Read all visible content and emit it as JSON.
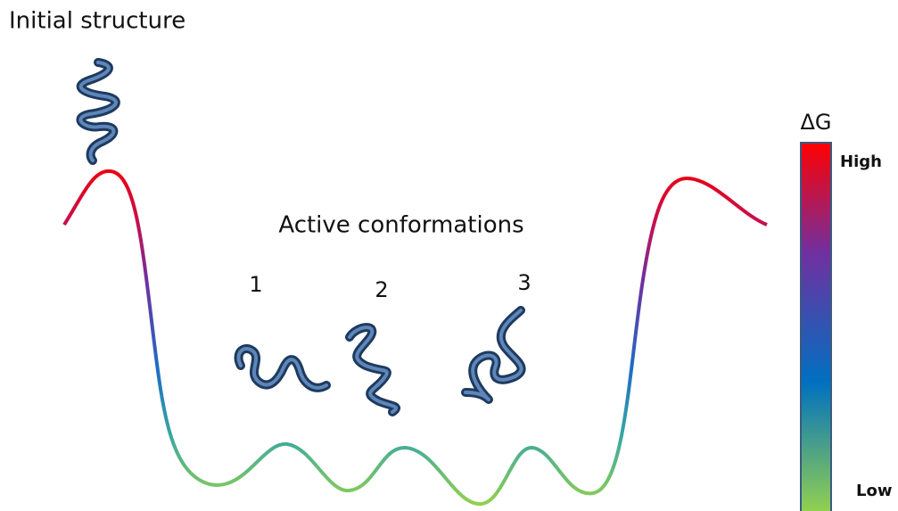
{
  "initial_label": "Initial structure",
  "active_label": "Active conformations",
  "conformations": [
    "1",
    "2",
    "3"
  ],
  "scale": {
    "symbol": "ΔG",
    "high": "High",
    "low": "Low"
  }
}
